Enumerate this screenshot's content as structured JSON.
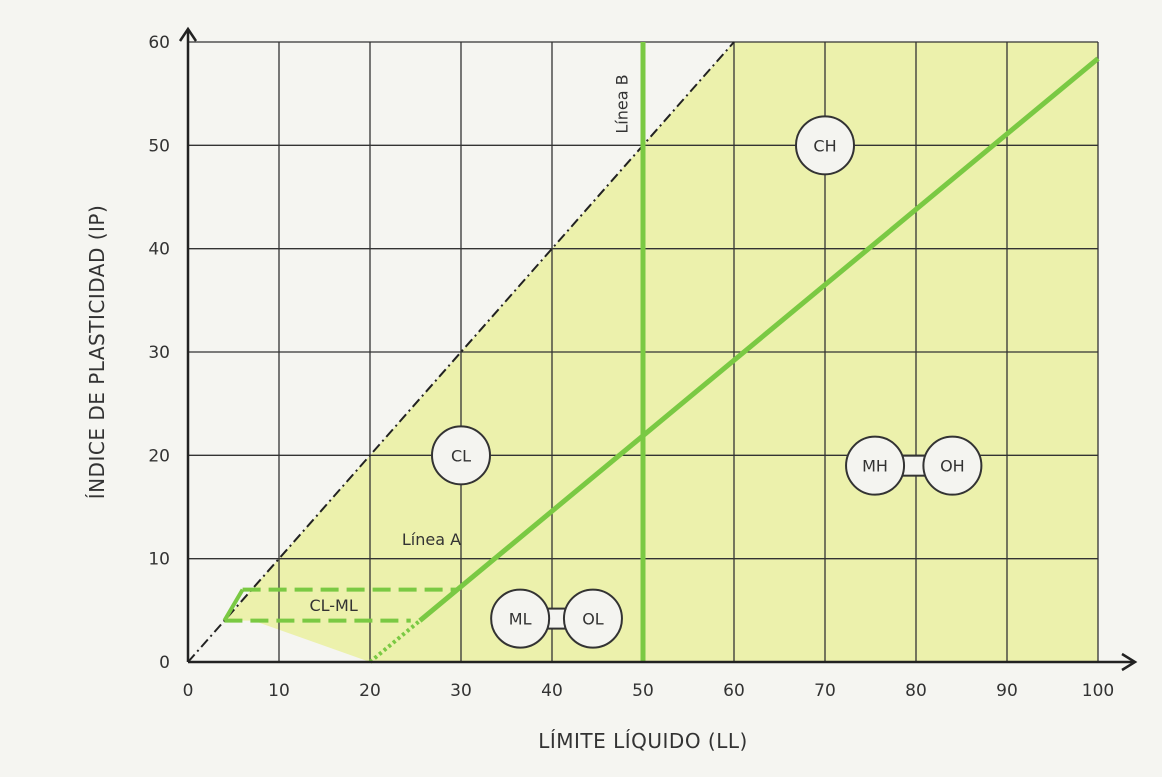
{
  "chart_data": {
    "type": "line",
    "xlabel": "LÍMITE LÍQUIDO (LL)",
    "ylabel": "ÍNDICE DE PLASTICIDAD (IP)",
    "xlim": [
      0,
      100
    ],
    "ylim": [
      0,
      60
    ],
    "x_ticks": [
      0,
      10,
      20,
      30,
      40,
      50,
      60,
      70,
      80,
      90,
      100
    ],
    "y_ticks": [
      0,
      10,
      20,
      30,
      40,
      50,
      60
    ],
    "grid": true,
    "series": [
      {
        "name": "Línea A",
        "points": [
          [
            20,
            0
          ],
          [
            100,
            58.4
          ]
        ]
      },
      {
        "name": "Línea B",
        "points": [
          [
            50,
            0
          ],
          [
            50,
            60
          ]
        ]
      },
      {
        "name": "",
        "points": [
          [
            0,
            0
          ],
          [
            60,
            60
          ]
        ]
      }
    ],
    "cl_ml_band": {
      "x": [
        4,
        30
      ],
      "y": [
        4,
        7
      ]
    },
    "zones": [
      {
        "label": "CL",
        "x": 30,
        "y": 20
      },
      {
        "label": "CH",
        "x": 70,
        "y": 50
      },
      {
        "label": "ML",
        "x": 36.5,
        "y": 4.2
      },
      {
        "label": "OL",
        "x": 44.5,
        "y": 4.2
      },
      {
        "label": "MH",
        "x": 75.5,
        "y": 19
      },
      {
        "label": "OH",
        "x": 84,
        "y": 19
      },
      {
        "label": "CL-ML",
        "x": 16,
        "y": 5.5
      }
    ],
    "line_labels": {
      "a": "Línea A",
      "b": "Línea B"
    },
    "colors": {
      "fill": "#eaf0a0",
      "line": "#7ac943",
      "grid": "#333333"
    }
  }
}
